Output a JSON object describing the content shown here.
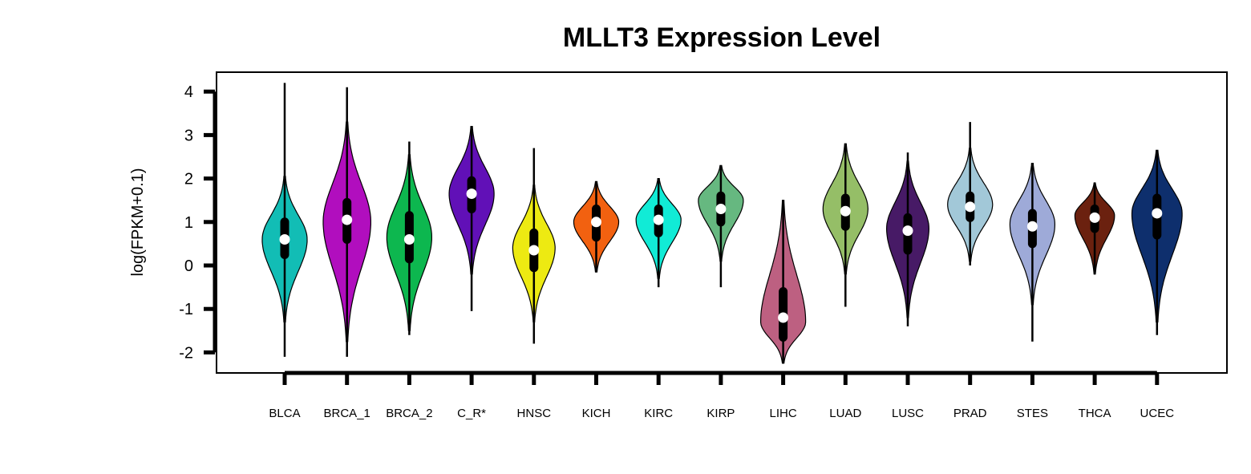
{
  "chart_data": {
    "type": "violin",
    "title": "MLLT3 Expression Level",
    "xlabel": "",
    "ylabel": "log(FPKM+0.1)",
    "ylim": [
      -2.5,
      4.4
    ],
    "yticks": [
      -2,
      -1,
      0,
      1,
      2,
      3,
      4
    ],
    "grid": false,
    "legend": "none",
    "categories": [
      "BLCA",
      "BRCA_1",
      "BRCA_2",
      "C_R*",
      "HNSC",
      "KICH",
      "KIRC",
      "KIRP",
      "LIHC",
      "LUAD",
      "LUSC",
      "PRAD",
      "STES",
      "THCA",
      "UCEC"
    ],
    "series": [
      {
        "category": "BLCA",
        "color": "#12BDB5",
        "min": -2.1,
        "max": 4.2,
        "vmin": -1.3,
        "vmax": 2.05,
        "q1": 0.25,
        "median": 0.6,
        "q3": 1.0,
        "mode": 0.6,
        "width": 0.85
      },
      {
        "category": "BRCA_1",
        "color": "#B10EBE",
        "min": -2.1,
        "max": 4.1,
        "vmin": -1.75,
        "vmax": 3.3,
        "q1": 0.6,
        "median": 1.05,
        "q3": 1.45,
        "mode": 1.0,
        "width": 0.9
      },
      {
        "category": "BRCA_2",
        "color": "#0DB74F",
        "min": -1.6,
        "max": 2.85,
        "vmin": -1.5,
        "vmax": 2.55,
        "q1": 0.15,
        "median": 0.6,
        "q3": 1.15,
        "mode": 0.65,
        "width": 0.85
      },
      {
        "category": "C_R*",
        "color": "#6110B7",
        "min": -1.05,
        "max": 3.2,
        "vmin": -0.2,
        "vmax": 3.2,
        "q1": 1.3,
        "median": 1.65,
        "q3": 1.95,
        "mode": 1.65,
        "width": 0.85
      },
      {
        "category": "HNSC",
        "color": "#EDEA12",
        "min": -1.8,
        "max": 2.7,
        "vmin": -1.3,
        "vmax": 1.85,
        "q1": -0.05,
        "median": 0.35,
        "q3": 0.75,
        "mode": 0.4,
        "width": 0.8
      },
      {
        "category": "KICH",
        "color": "#F26110",
        "min": -0.15,
        "max": 1.93,
        "vmin": -0.15,
        "vmax": 1.93,
        "q1": 0.65,
        "median": 1.0,
        "q3": 1.3,
        "mode": 1.0,
        "width": 0.85
      },
      {
        "category": "KIRC",
        "color": "#11EBD6",
        "min": -0.5,
        "max": 2.0,
        "vmin": -0.3,
        "vmax": 2.0,
        "q1": 0.75,
        "median": 1.05,
        "q3": 1.3,
        "mode": 1.05,
        "width": 0.85
      },
      {
        "category": "KIRP",
        "color": "#66B880",
        "min": -0.5,
        "max": 2.3,
        "vmin": 0.1,
        "vmax": 2.3,
        "q1": 1.0,
        "median": 1.3,
        "q3": 1.6,
        "mode": 1.5,
        "width": 0.85
      },
      {
        "category": "LIHC",
        "color": "#BD6081",
        "min": -2.25,
        "max": 1.5,
        "vmin": -2.25,
        "vmax": 1.5,
        "q1": -1.65,
        "median": -1.2,
        "q3": -0.6,
        "mode": -1.3,
        "width": 0.85
      },
      {
        "category": "LUAD",
        "color": "#95BE67",
        "min": -0.95,
        "max": 2.8,
        "vmin": -0.2,
        "vmax": 2.8,
        "q1": 0.9,
        "median": 1.25,
        "q3": 1.55,
        "mode": 1.3,
        "width": 0.85
      },
      {
        "category": "LUSC",
        "color": "#471A66",
        "min": -1.4,
        "max": 2.6,
        "vmin": -1.2,
        "vmax": 2.4,
        "q1": 0.35,
        "median": 0.8,
        "q3": 1.1,
        "mode": 0.85,
        "width": 0.8
      },
      {
        "category": "PRAD",
        "color": "#A2C8D8",
        "min": 0.0,
        "max": 3.3,
        "vmin": 0.1,
        "vmax": 2.7,
        "q1": 1.1,
        "median": 1.35,
        "q3": 1.6,
        "mode": 1.4,
        "width": 0.85
      },
      {
        "category": "STES",
        "color": "#9EAAD8",
        "min": -1.75,
        "max": 2.35,
        "vmin": -0.9,
        "vmax": 2.35,
        "q1": 0.5,
        "median": 0.9,
        "q3": 1.2,
        "mode": 0.95,
        "width": 0.85
      },
      {
        "category": "THCA",
        "color": "#6B210F",
        "min": -0.2,
        "max": 1.9,
        "vmin": -0.2,
        "vmax": 1.9,
        "q1": 0.85,
        "median": 1.1,
        "q3": 1.3,
        "mode": 1.15,
        "width": 0.75
      },
      {
        "category": "UCEC",
        "color": "#0E2F6D",
        "min": -1.6,
        "max": 2.65,
        "vmin": -1.3,
        "vmax": 2.65,
        "q1": 0.7,
        "median": 1.2,
        "q3": 1.55,
        "mode": 1.2,
        "width": 0.95
      }
    ]
  }
}
